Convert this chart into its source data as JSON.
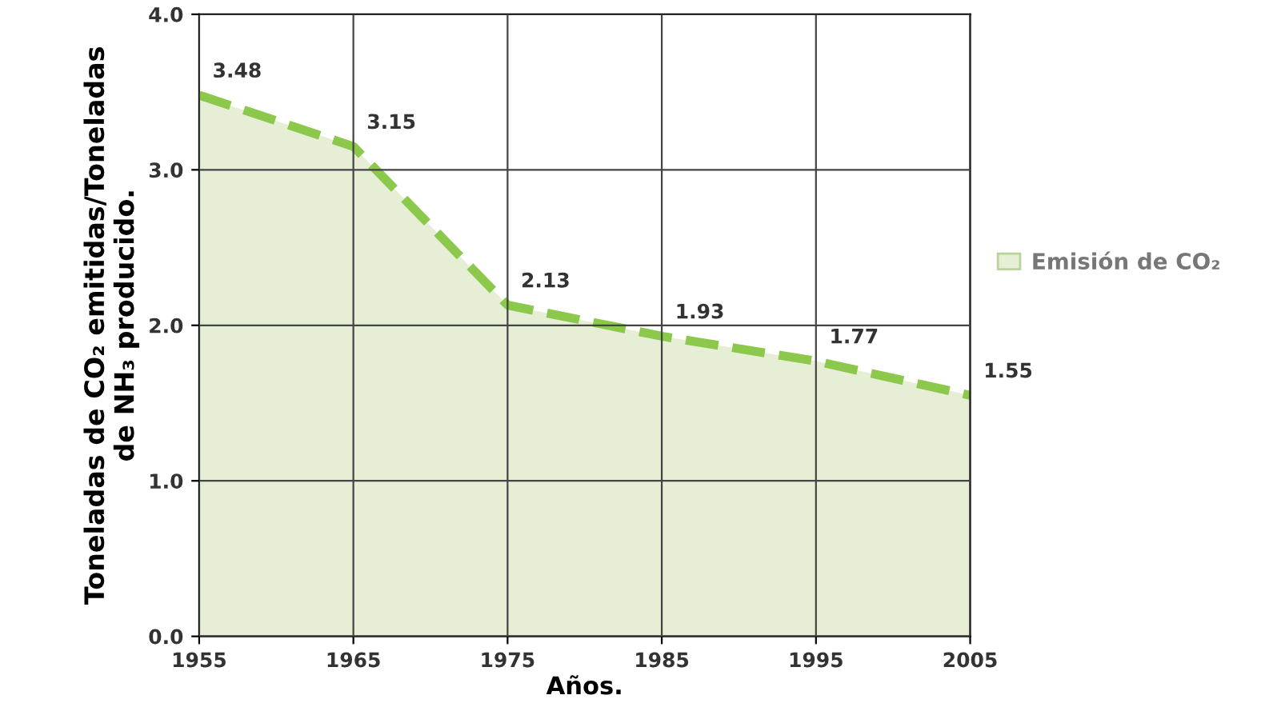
{
  "chart_data": {
    "type": "area",
    "xlabel": "Años.",
    "ylabel": "Toneladas de CO₂ emitidas/Toneladas\nde NH₃ producido.",
    "x": [
      1955,
      1965,
      1975,
      1985,
      1995,
      2005
    ],
    "series": [
      {
        "name": "Emisión de CO₂",
        "color": "#8cc84b",
        "values": [
          3.48,
          3.15,
          2.13,
          1.93,
          1.77,
          1.55
        ]
      }
    ],
    "xlim": [
      1955,
      2005
    ],
    "xticks": [
      1955,
      1965,
      1975,
      1985,
      1995,
      2005
    ],
    "ylim": [
      0,
      4
    ],
    "yticks": [
      {
        "value": 0,
        "label": "0.0"
      },
      {
        "value": 1,
        "label": "1.0"
      },
      {
        "value": 2,
        "label": "2.0"
      },
      {
        "value": 3,
        "label": "3.0"
      },
      {
        "value": 4,
        "label": "4.0"
      }
    ],
    "grid": true,
    "legend": "right",
    "data_labels": true,
    "marker": "none",
    "line_style": "dashed"
  }
}
